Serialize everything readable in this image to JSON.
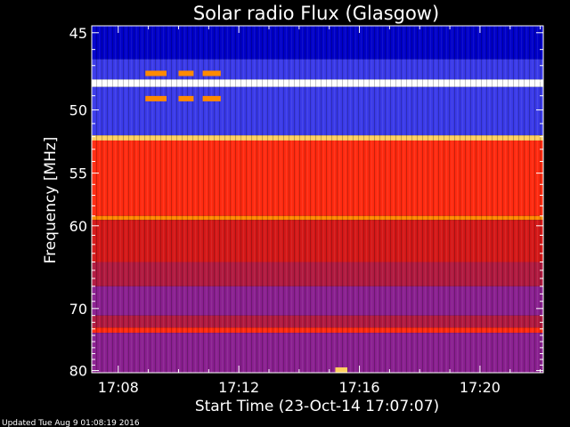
{
  "chart_data": {
    "type": "heatmap",
    "title": "Solar radio Flux (Glasgow)",
    "xlabel": "Start Time (23-Oct-14 17:07:07)",
    "ylabel": "Frequency [MHz]",
    "x_tick_labels": [
      "17:08",
      "17:12",
      "17:16",
      "17:20"
    ],
    "x_ticks_minutes": [
      8,
      12,
      16,
      20
    ],
    "xlim_minutes": [
      7.12,
      22.1
    ],
    "y_ticks": [
      45,
      50,
      55,
      60,
      70,
      80
    ],
    "y_tick_labels": [
      "45",
      "50",
      "55",
      "60",
      "70",
      "80"
    ],
    "ylim": [
      44.6,
      80.4
    ],
    "y_scale": "reciprocal",
    "grid": false,
    "colormap": [
      "#000070",
      "#0000c8",
      "#3a3ae8",
      "#6030c0",
      "#8a2090",
      "#b01a40",
      "#d41818",
      "#ff2a10",
      "#ff8a00",
      "#ffd060",
      "#ffffff"
    ],
    "frequency_bands": [
      {
        "f_from": 44.6,
        "f_to": 46.6,
        "level": 1,
        "description": ""
      },
      {
        "f_from": 46.6,
        "f_to": 47.9,
        "level": 2
      },
      {
        "f_from": 47.9,
        "f_to": 48.4,
        "level": 10
      },
      {
        "f_from": 48.4,
        "f_to": 51.9,
        "level": 2
      },
      {
        "f_from": 51.9,
        "f_to": 52.3,
        "level": 9
      },
      {
        "f_from": 52.3,
        "f_to": 59.0,
        "level": 7
      },
      {
        "f_from": 59.0,
        "f_to": 59.4,
        "level": 8
      },
      {
        "f_from": 59.4,
        "f_to": 64.0,
        "level": 6
      },
      {
        "f_from": 64.0,
        "f_to": 67.0,
        "level": 5
      },
      {
        "f_from": 67.0,
        "f_to": 71.0,
        "level": 4
      },
      {
        "f_from": 71.0,
        "f_to": 72.8,
        "level": 5
      },
      {
        "f_from": 72.8,
        "f_to": 73.6,
        "level": 7
      },
      {
        "f_from": 73.6,
        "f_to": 80.4,
        "level": 4
      }
    ],
    "bursts": [
      {
        "t_from": 8.9,
        "t_to": 9.6,
        "f": 47.5,
        "level": 8
      },
      {
        "t_from": 10.0,
        "t_to": 10.5,
        "f": 47.5,
        "level": 8
      },
      {
        "t_from": 10.8,
        "t_to": 11.4,
        "f": 47.5,
        "level": 8
      },
      {
        "t_from": 8.9,
        "t_to": 9.6,
        "f": 49.2,
        "level": 8
      },
      {
        "t_from": 10.0,
        "t_to": 10.5,
        "f": 49.2,
        "level": 8
      },
      {
        "t_from": 10.8,
        "t_to": 11.4,
        "f": 49.2,
        "level": 8
      },
      {
        "t_from": 15.2,
        "t_to": 15.6,
        "f": 79.9,
        "level": 9
      }
    ],
    "footer": "Updated Tue Aug  9 01:08:19 2016"
  }
}
